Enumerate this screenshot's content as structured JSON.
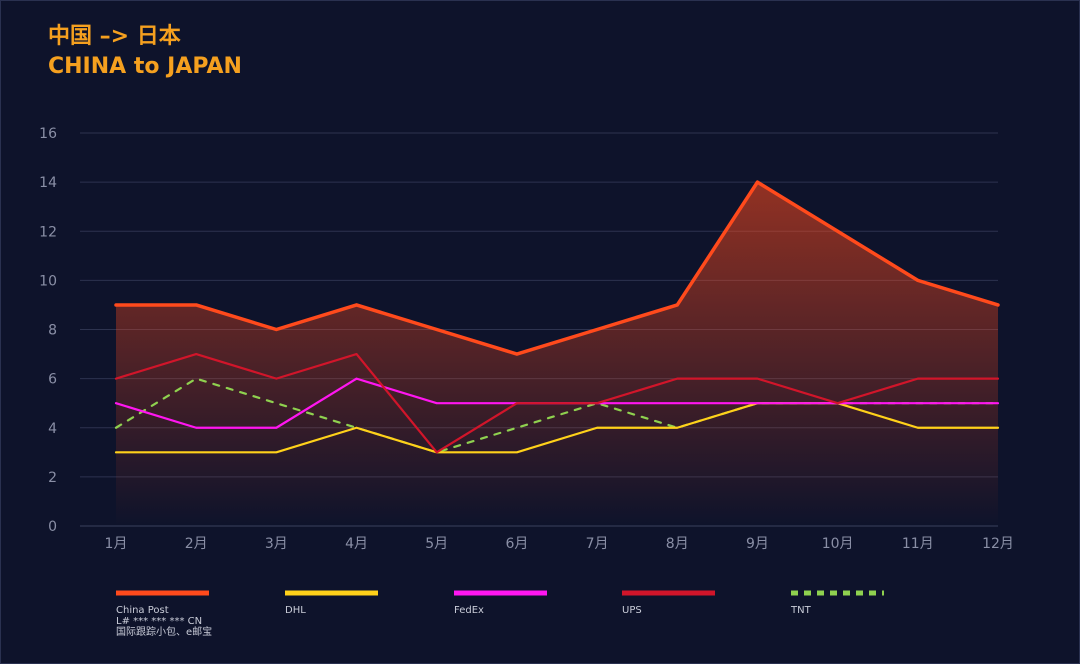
{
  "title": {
    "line1": "中国 –> 日本",
    "line2": "CHINA to JAPAN"
  },
  "chart_data": {
    "type": "line",
    "categories": [
      "1月",
      "2月",
      "3月",
      "4月",
      "5月",
      "6月",
      "7月",
      "8月",
      "9月",
      "10月",
      "11月",
      "12月"
    ],
    "ylim": [
      0,
      16
    ],
    "yticks": [
      0,
      2,
      4,
      6,
      8,
      10,
      12,
      14,
      16
    ],
    "grid": true,
    "series": [
      {
        "name": "China Post",
        "sublabels": [
          "L# *** *** *** CN",
          "国际跟踪小包、e邮宝"
        ],
        "color": "#ff4a1c",
        "dash": false,
        "area": true,
        "values": [
          9,
          9,
          8,
          9,
          8,
          7,
          8,
          9,
          14,
          12,
          10,
          9
        ]
      },
      {
        "name": "DHL",
        "sublabels": [],
        "color": "#ffd11a",
        "dash": false,
        "area": false,
        "values": [
          3,
          3,
          3,
          4,
          3,
          3,
          4,
          4,
          5,
          5,
          4,
          4
        ]
      },
      {
        "name": "FedEx",
        "sublabels": [],
        "color": "#ff16f0",
        "dash": false,
        "area": false,
        "values": [
          5,
          4,
          4,
          6,
          5,
          5,
          5,
          5,
          5,
          5,
          5,
          5
        ]
      },
      {
        "name": "UPS",
        "sublabels": [],
        "color": "#d1152a",
        "dash": false,
        "area": false,
        "values": [
          6,
          7,
          6,
          7,
          3,
          5,
          5,
          6,
          6,
          5,
          6,
          6
        ]
      },
      {
        "name": "TNT",
        "sublabels": [],
        "color": "#8fd14f",
        "dash": true,
        "area": false,
        "values": [
          4,
          6,
          5,
          4,
          3,
          4,
          5,
          4,
          5,
          5,
          5,
          5
        ]
      }
    ]
  }
}
